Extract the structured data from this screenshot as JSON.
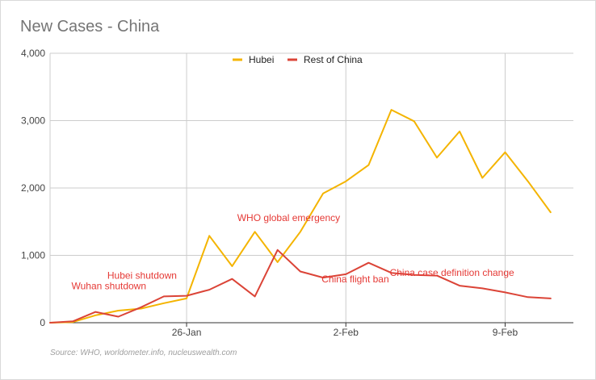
{
  "chart_data": {
    "type": "line",
    "title": "New Cases - China",
    "source": "Source: WHO, worldometer.info, nucleuswealth.com",
    "xlabel": "",
    "ylabel": "",
    "x": [
      "2020-01-20",
      "2020-01-21",
      "2020-01-22",
      "2020-01-23",
      "2020-01-24",
      "2020-01-25",
      "2020-01-26",
      "2020-01-27",
      "2020-01-28",
      "2020-01-29",
      "2020-01-30",
      "2020-01-31",
      "2020-02-01",
      "2020-02-02",
      "2020-02-03",
      "2020-02-04",
      "2020-02-05",
      "2020-02-06",
      "2020-02-07",
      "2020-02-08",
      "2020-02-09",
      "2020-02-10",
      "2020-02-11",
      "2020-02-12"
    ],
    "xticks": [
      {
        "value": "2020-01-26",
        "label": "26-Jan"
      },
      {
        "value": "2020-02-02",
        "label": "2-Feb"
      },
      {
        "value": "2020-02-09",
        "label": "9-Feb"
      }
    ],
    "ylim": [
      0,
      4000
    ],
    "yticks": [
      {
        "value": 0,
        "label": "0"
      },
      {
        "value": 1000,
        "label": "1,000"
      },
      {
        "value": 2000,
        "label": "2,000"
      },
      {
        "value": 3000,
        "label": "3,000"
      },
      {
        "value": 4000,
        "label": "4,000"
      }
    ],
    "grid": true,
    "legend_position": "top-center",
    "series": [
      {
        "name": "Hubei",
        "color": "#f4b400",
        "values": [
          0,
          10,
          110,
          180,
          210,
          290,
          360,
          1290,
          840,
          1350,
          900,
          1350,
          1920,
          2100,
          2340,
          3160,
          2990,
          2450,
          2840,
          2150,
          2530,
          2100,
          1640,
          null
        ]
      },
      {
        "name": "Rest of China",
        "color": "#db4437",
        "values": [
          0,
          20,
          160,
          90,
          230,
          390,
          400,
          490,
          650,
          390,
          1080,
          760,
          670,
          720,
          890,
          740,
          710,
          700,
          550,
          510,
          450,
          380,
          360,
          null
        ]
      }
    ],
    "annotations": [
      {
        "text": "Wuhan shutdown",
        "x": "2020-01-23"
      },
      {
        "text": "Hubei shutdown",
        "x": "2020-01-25"
      },
      {
        "text": "WHO global emergency",
        "x": "2020-01-30"
      },
      {
        "text": "China flight ban",
        "x": "2020-02-02"
      },
      {
        "text": "China case definition change",
        "x": "2020-02-04"
      }
    ]
  }
}
